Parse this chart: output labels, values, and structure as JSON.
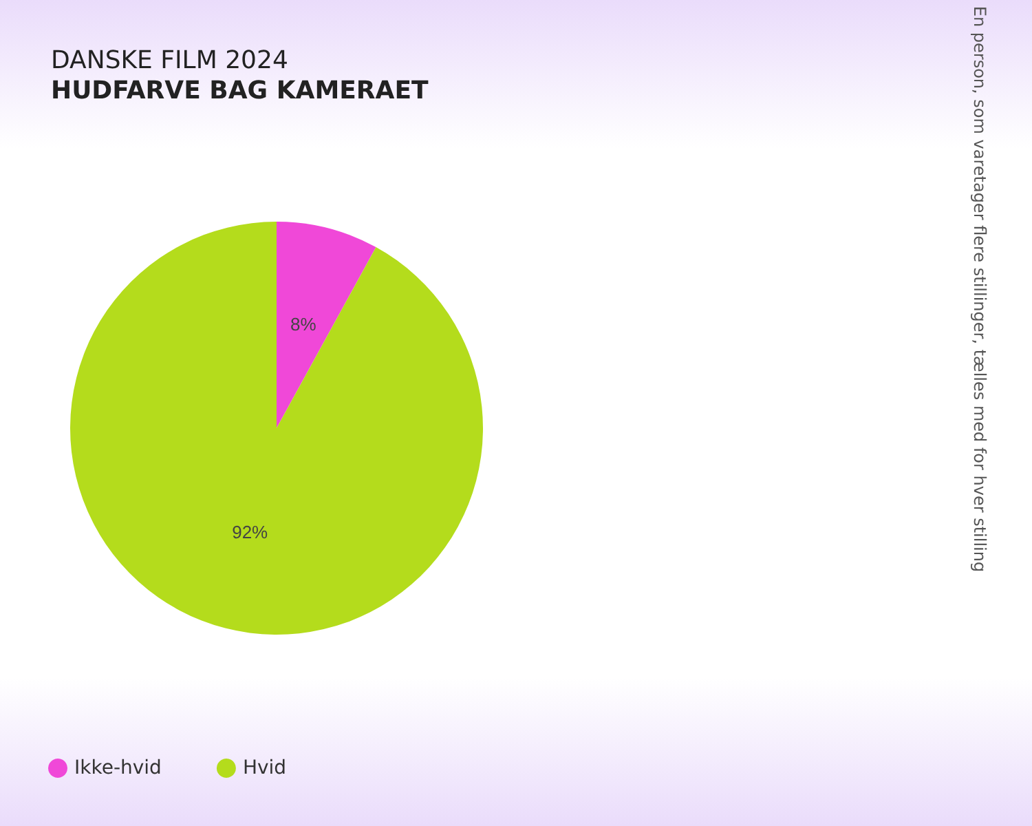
{
  "chart_data": {
    "type": "pie",
    "title": "DANSKE FILM 2024",
    "subtitle": "HUDFARVE BAG KAMERAET",
    "categories": [
      "Ikke-hvid",
      "Hvid"
    ],
    "values": [
      8,
      92
    ],
    "colors": [
      "#f048d8",
      "#b4dc1c"
    ],
    "value_labels": [
      "8%",
      "92%"
    ],
    "legend": "bottom left",
    "annotations": [
      "En person, som varetager flere stillinger, tælles med for hver stilling"
    ]
  }
}
